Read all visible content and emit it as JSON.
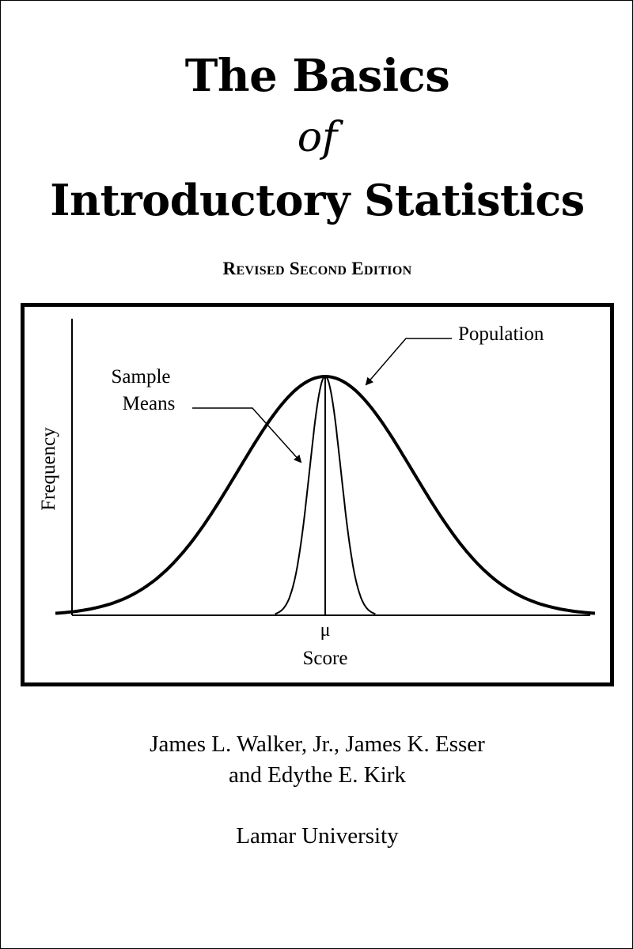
{
  "cover": {
    "title_line1": "The Basics",
    "title_line2": "of",
    "title_line3": "Introductory Statistics",
    "edition": "Revised Second Edition",
    "authors_line1": "James L. Walker, Jr., James K. Esser",
    "authors_line2": "and Edythe E. Kirk",
    "institution": "Lamar University"
  },
  "chart_data": {
    "type": "line",
    "title": "",
    "xlabel": "Score",
    "ylabel": "Frequency",
    "x_tick_labels": [
      "μ"
    ],
    "series": [
      {
        "name": "Population",
        "shape": "normal",
        "center": "μ",
        "relative_spread": 1.0,
        "relative_peak": 1.0
      },
      {
        "name": "Sample Means",
        "shape": "normal",
        "center": "μ",
        "relative_spread": 0.18,
        "relative_peak": 1.0
      }
    ],
    "annotations": [
      "Population",
      "Sample Means"
    ],
    "grid": false
  }
}
